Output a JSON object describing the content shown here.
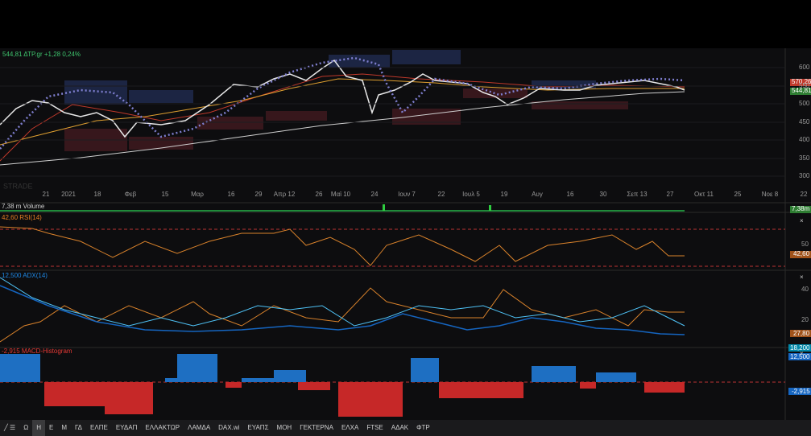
{
  "header": {
    "quote": "544,81 ΔΤΡ.gr +1,28 0,24%",
    "watermark": "STRADE"
  },
  "main_panel": {
    "price_ticks": [
      "600",
      "550",
      "500",
      "450",
      "400",
      "350",
      "300"
    ],
    "badges": [
      "570,26",
      "544,81"
    ],
    "x_axis": [
      "21",
      "2021",
      "18",
      "Φεβ",
      "15",
      "Μαρ",
      "16",
      "29",
      "Απρ 12",
      "26",
      "Μαϊ 10",
      "24",
      "Ιουν 7",
      "22",
      "Ιουλ 5",
      "19",
      "Αυγ",
      "16",
      "30",
      "Σεπ 13",
      "27",
      "Οκτ 11",
      "25",
      "Νοε 8",
      "22"
    ]
  },
  "volume_panel": {
    "label": "7,38 m Volume",
    "badge": "7,38m"
  },
  "rsi_panel": {
    "label": "42,60 RSI(14)",
    "ticks": [
      "50"
    ],
    "badge": "42,60",
    "close": "×"
  },
  "adx_panel": {
    "label": "12,500 ADX(14)",
    "ticks": [
      "40",
      "20"
    ],
    "badges": [
      "27,80",
      "18,200",
      "12,500"
    ],
    "close": "×"
  },
  "macd_panel": {
    "label": "-2,915 MACD-Histogram",
    "badge": "-2,915",
    "close": "×"
  },
  "toolbar": {
    "items": [
      "Ω",
      "Η",
      "Ε",
      "Μ",
      "ΓΔ",
      "ΕΛΠΕ",
      "ΕΥΔΑΠ",
      "ΕΛΛΑΚΤΩΡ",
      "ΛΑΜΔΑ",
      "DAX.wi",
      "ΕΥΑΠΣ",
      "ΜΟΗ",
      "ΓΕΚΤΕΡΝΑ",
      "ΕΛΧΑ",
      "FTSE",
      "ΑΔΑΚ",
      "ΦΤΡ"
    ]
  }
}
